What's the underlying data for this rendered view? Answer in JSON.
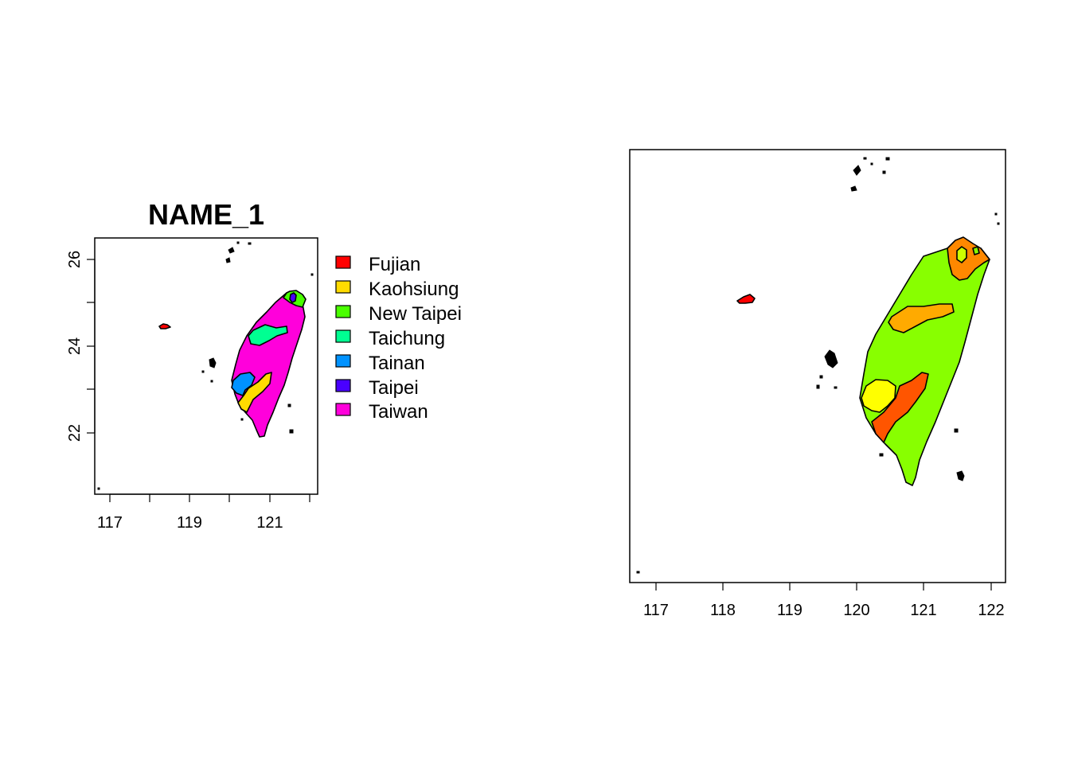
{
  "left_panel": {
    "title": "NAME_1",
    "x_ticks": [
      "117",
      "119",
      "121"
    ],
    "y_ticks": [
      "26",
      "24",
      "22"
    ],
    "legend": [
      {
        "label": "Fujian",
        "color": "#FF0000"
      },
      {
        "label": "Kaohsiung",
        "color": "#FFDB00"
      },
      {
        "label": "New Taipei",
        "color": "#49FF00"
      },
      {
        "label": "Taichung",
        "color": "#00FF92"
      },
      {
        "label": "Tainan",
        "color": "#0092FF"
      },
      {
        "label": "Taipei",
        "color": "#4900FF"
      },
      {
        "label": "Taiwan",
        "color": "#FF00DB"
      }
    ]
  },
  "right_panel": {
    "x_ticks": [
      "117",
      "118",
      "119",
      "120",
      "121",
      "122"
    ],
    "colors": {
      "taiwan": "#88FF00",
      "kaohsiung": "#FF5500",
      "tainan": "#FFFF00",
      "taichung": "#FFAA00",
      "new_taipei": "#FF8800",
      "taipei": "#CCFF00",
      "fujian": "#FF0000"
    }
  }
}
